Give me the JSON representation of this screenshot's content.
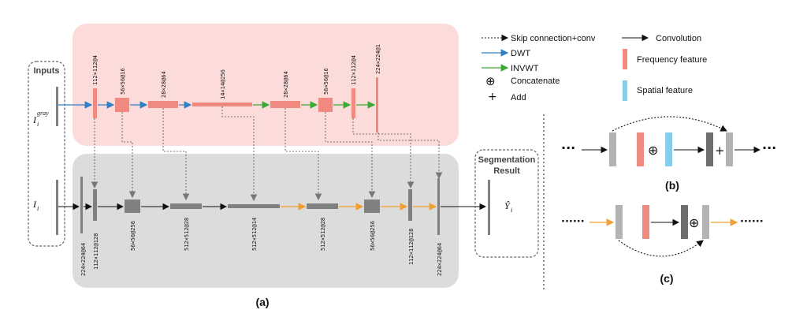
{
  "legend": {
    "skip_conv": "Skip connection+conv",
    "convolution": "Convolution",
    "dwt": "DWT",
    "invwt": "INVWT",
    "concatenate": "Concatenate",
    "add": "Add",
    "frequency_feature": "Frequency feature",
    "spatial_feature": "Spatial feature"
  },
  "labels": {
    "inputs": "Inputs",
    "input_gray_var": "I",
    "input_gray_sub": "i",
    "input_gray_sup": "gray",
    "input_var": "I",
    "input_sub": "i",
    "segmentation": "Segmentation",
    "result": "Result",
    "output_var": "Ŷ",
    "output_sub": "i"
  },
  "top_dims": [
    "112×112@4",
    "56×56@16",
    "28×28@64",
    "14×14@256",
    "28×28@64",
    "56×56@16",
    "112×112@4",
    "224×224@1"
  ],
  "bottom_dims": [
    "224×224@64",
    "112×112@128",
    "56×56@256",
    "512×512@28",
    "512×512@14",
    "512×512@28",
    "56×56@256",
    "112×112@128",
    "224×224@64"
  ],
  "captions": {
    "a": "(a)",
    "b": "(b)",
    "c": "(c)"
  },
  "symbols": {
    "concat": "⊕",
    "add": "+",
    "dots": "···",
    "dots_long": "······"
  },
  "colors": {
    "frequency": "#f08a80",
    "spatial": "#87cdea",
    "spatial_block": "#808080",
    "top_panel": "#fbdcda",
    "bottom_panel": "#dcdcdc",
    "dwt_arrow": "#2f7fc4",
    "invwt_arrow": "#3aaa35",
    "orange_arrow": "#f0a030"
  }
}
